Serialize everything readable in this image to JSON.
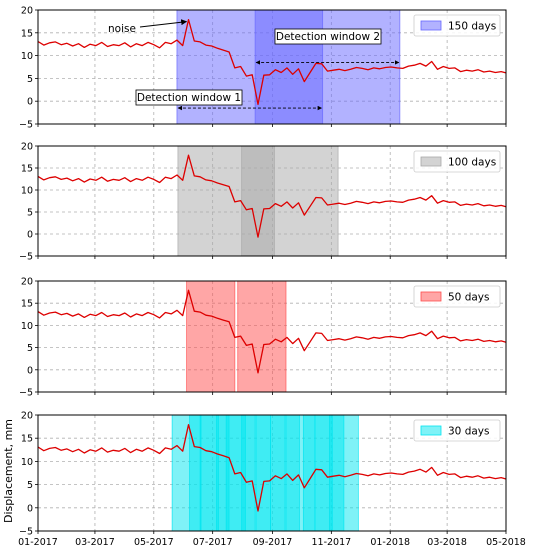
{
  "chart_data": [
    {
      "type": "line",
      "panel": 1,
      "legend": {
        "label": "150 days",
        "color": "#6666ff",
        "alpha": 0.5,
        "placement": "top-right"
      },
      "windows": [
        [
          "2017-05-25",
          "2017-10-23"
        ],
        [
          "2017-08-14",
          "2018-01-11"
        ]
      ],
      "annotations": {
        "noise_label": "noise",
        "window1_label": "Detection window 1",
        "window2_label": "Detection window 2"
      },
      "ylim": [
        -5,
        20
      ],
      "yticks": [
        "20",
        "15",
        "10",
        "5",
        "0",
        "−5"
      ],
      "grid": true
    },
    {
      "type": "line",
      "panel": 2,
      "legend": {
        "label": "100 days",
        "color": "#a8a8a8",
        "alpha": 0.5,
        "placement": "top-right"
      },
      "windows": [
        [
          "2017-05-26",
          "2017-09-03"
        ],
        [
          "2017-07-31",
          "2017-11-08"
        ]
      ],
      "ylim": [
        -5,
        20
      ],
      "yticks": [
        "20",
        "15",
        "10",
        "5",
        "0",
        "−5"
      ],
      "grid": true
    },
    {
      "type": "line",
      "panel": 3,
      "legend": {
        "label": "50 days",
        "color": "#ff4d4d",
        "alpha": 0.5,
        "placement": "top-right"
      },
      "windows": [
        [
          "2017-06-04",
          "2017-07-24"
        ],
        [
          "2017-07-27",
          "2017-09-15"
        ]
      ],
      "ylim": [
        -5,
        20
      ],
      "yticks": [
        "20",
        "15",
        "10",
        "5",
        "0",
        "−5"
      ],
      "grid": true
    },
    {
      "type": "line",
      "panel": 4,
      "legend": {
        "label": "30 days",
        "color": "#00e5f0",
        "alpha": 0.5,
        "placement": "top-right"
      },
      "windows": [
        [
          "2017-05-20",
          "2017-06-19"
        ],
        [
          "2017-06-07",
          "2017-07-07"
        ],
        [
          "2017-06-18",
          "2017-07-18"
        ],
        [
          "2017-07-05",
          "2017-08-04"
        ],
        [
          "2017-07-15",
          "2017-08-14"
        ],
        [
          "2017-07-31",
          "2017-08-30"
        ],
        [
          "2017-08-15",
          "2017-09-14"
        ],
        [
          "2017-08-30",
          "2017-09-29"
        ],
        [
          "2017-09-15",
          "2017-10-15"
        ],
        [
          "2017-10-03",
          "2017-11-02"
        ],
        [
          "2017-10-15",
          "2017-11-14"
        ],
        [
          "2017-10-30",
          "2017-11-29"
        ]
      ],
      "ylim": [
        -5,
        20
      ],
      "yticks": [
        "20",
        "15",
        "10",
        "5",
        "0",
        "−5"
      ],
      "ylabel": "Displacement, mm",
      "grid": true,
      "xticks": [
        "01-2017",
        "03-2017",
        "05-2017",
        "07-2017",
        "09-2017",
        "11-2017",
        "01-2018",
        "03-2018",
        "05-2018"
      ]
    }
  ],
  "series": {
    "name": "displacement",
    "color": "#dd0000",
    "x": [
      "2017-01-01",
      "2017-01-07",
      "2017-01-13",
      "2017-01-19",
      "2017-01-25",
      "2017-01-31",
      "2017-02-06",
      "2017-02-12",
      "2017-02-18",
      "2017-02-24",
      "2017-03-02",
      "2017-03-08",
      "2017-03-14",
      "2017-03-20",
      "2017-03-26",
      "2017-04-01",
      "2017-04-07",
      "2017-04-13",
      "2017-04-19",
      "2017-04-25",
      "2017-05-01",
      "2017-05-07",
      "2017-05-13",
      "2017-05-19",
      "2017-05-25",
      "2017-05-31",
      "2017-06-06",
      "2017-06-12",
      "2017-06-18",
      "2017-06-24",
      "2017-06-30",
      "2017-07-06",
      "2017-07-12",
      "2017-07-18",
      "2017-07-24",
      "2017-07-30",
      "2017-08-05",
      "2017-08-11",
      "2017-08-17",
      "2017-08-23",
      "2017-08-29",
      "2017-09-04",
      "2017-09-10",
      "2017-09-16",
      "2017-09-22",
      "2017-09-28",
      "2017-10-04",
      "2017-10-10",
      "2017-10-16",
      "2017-10-22",
      "2017-10-28",
      "2017-11-03",
      "2017-11-09",
      "2017-11-15",
      "2017-11-21",
      "2017-11-27",
      "2017-12-03",
      "2017-12-09",
      "2017-12-15",
      "2017-12-21",
      "2017-12-27",
      "2018-01-02",
      "2018-01-08",
      "2018-01-14",
      "2018-01-20",
      "2018-01-26",
      "2018-02-01",
      "2018-02-07",
      "2018-02-13",
      "2018-02-19",
      "2018-02-25",
      "2018-03-03",
      "2018-03-09",
      "2018-03-15",
      "2018-03-21",
      "2018-03-27",
      "2018-04-02",
      "2018-04-08",
      "2018-04-14",
      "2018-04-20",
      "2018-04-26",
      "2018-05-01"
    ],
    "y": [
      13.1,
      12.3,
      12.8,
      13.0,
      12.4,
      12.7,
      12.1,
      12.6,
      11.8,
      12.5,
      12.2,
      12.9,
      12.0,
      12.4,
      12.2,
      12.8,
      11.9,
      12.6,
      12.2,
      12.9,
      12.4,
      11.7,
      12.9,
      12.6,
      13.4,
      12.2,
      17.9,
      13.2,
      13.0,
      12.3,
      12.1,
      11.6,
      11.2,
      10.8,
      7.3,
      7.6,
      5.5,
      5.8,
      -0.7,
      5.7,
      5.8,
      6.9,
      6.3,
      7.3,
      5.9,
      7.1,
      4.3,
      6.3,
      8.3,
      8.2,
      6.6,
      6.8,
      7.0,
      6.7,
      7.0,
      7.4,
      7.2,
      6.9,
      7.3,
      7.1,
      7.4,
      7.5,
      7.3,
      7.2,
      7.7,
      7.9,
      8.3,
      7.7,
      8.7,
      7.0,
      7.6,
      7.2,
      7.3,
      6.5,
      6.8,
      6.6,
      6.9,
      6.4,
      6.6,
      6.3,
      6.5,
      6.2
    ]
  }
}
